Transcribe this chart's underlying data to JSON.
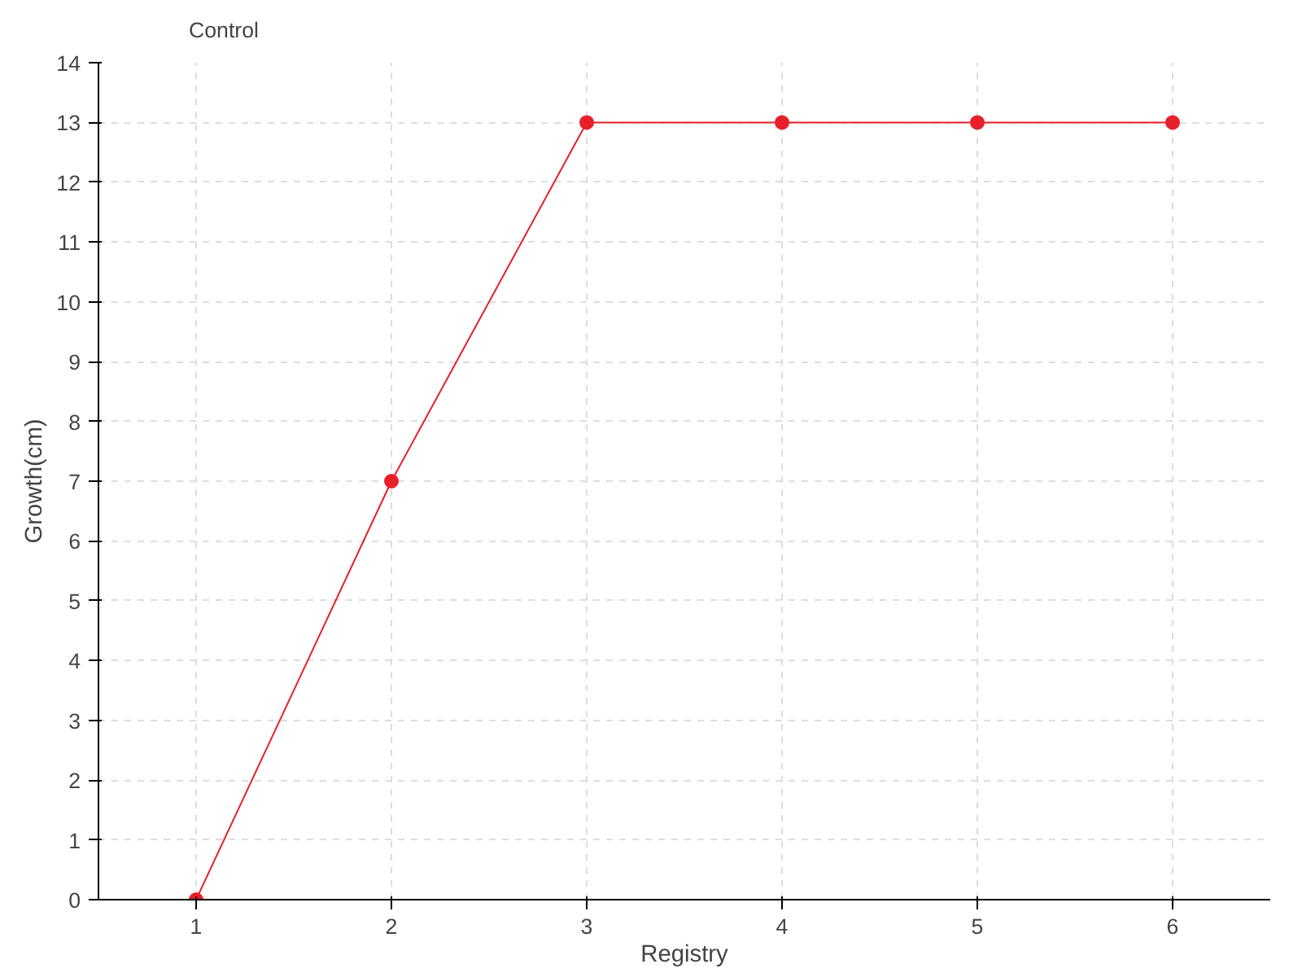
{
  "chart_data": {
    "type": "line",
    "xlabel": "Registry",
    "ylabel": "Growth(cm)",
    "x": [
      1,
      2,
      3,
      4,
      5,
      6
    ],
    "series": [
      {
        "name": "Control",
        "color": "#e8202a",
        "values": [
          0,
          7,
          13,
          13,
          13,
          13
        ]
      }
    ],
    "xlim": [
      0.5,
      6.5
    ],
    "xticks": [
      1,
      2,
      3,
      4,
      5,
      6
    ],
    "ylim": [
      0,
      14
    ],
    "yticks": [
      0,
      1,
      2,
      3,
      4,
      5,
      6,
      7,
      8,
      9,
      10,
      11,
      12,
      13,
      14
    ],
    "grid": true,
    "legend": "top left",
    "marker": "circle",
    "line_style": "solid"
  }
}
